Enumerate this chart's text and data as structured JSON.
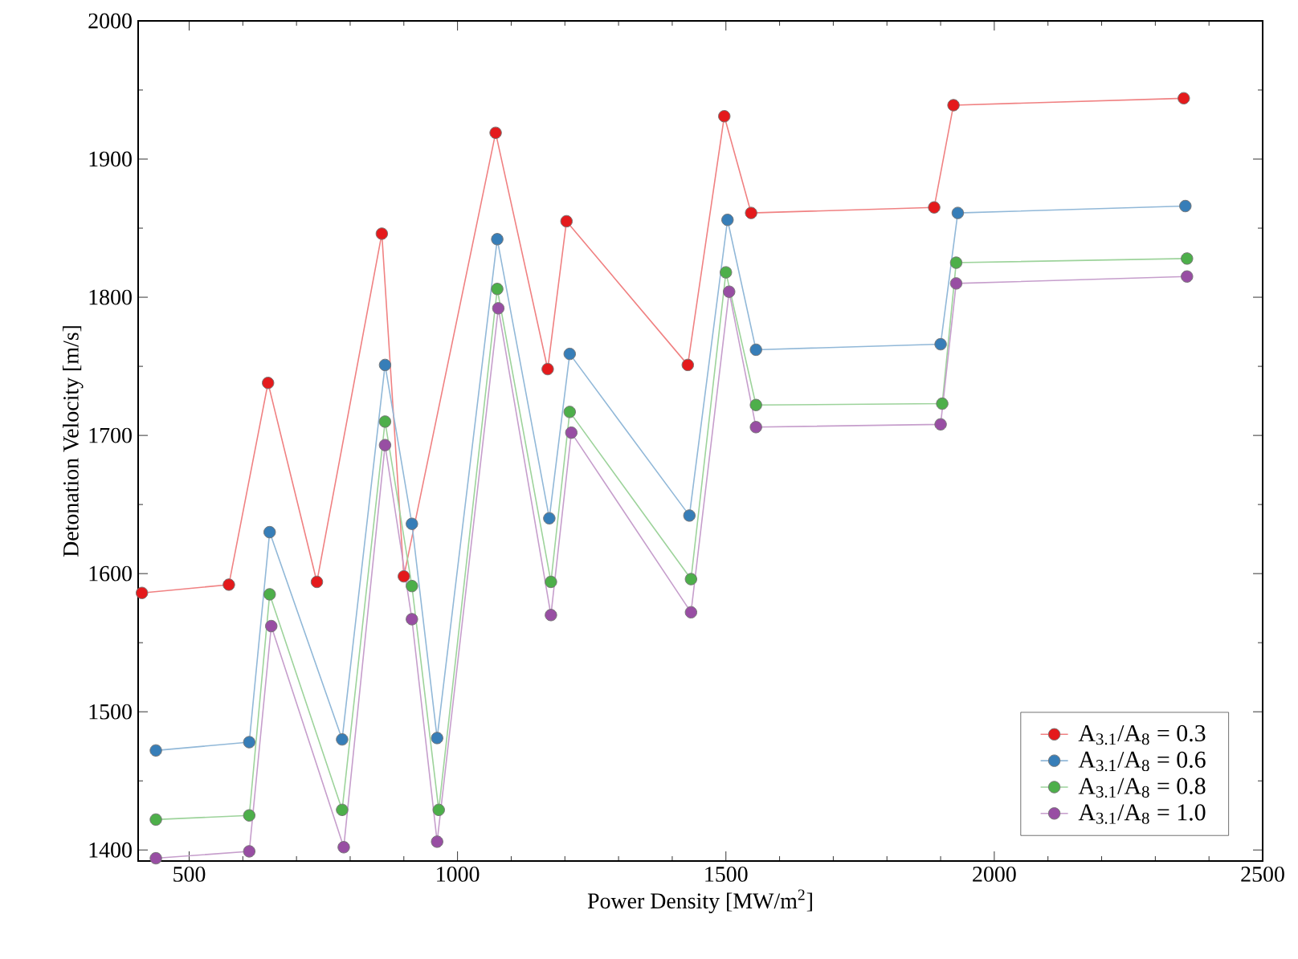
{
  "chart_data": {
    "type": "line",
    "xlabel": "Power Density [MW/m$^{2}$]",
    "ylabel": "Detonation Velocity [m/s]",
    "xlim": [
      405,
      2500
    ],
    "ylim": [
      1392,
      2000
    ],
    "xticks": [
      500,
      1000,
      1500,
      2000,
      2500
    ],
    "yticks": [
      1400,
      1500,
      1600,
      1700,
      1800,
      1900,
      2000
    ],
    "grid": false,
    "legend": "bottom right",
    "marker": "circle",
    "line_style": "solid",
    "series": [
      {
        "name": "A$_{3.1}$/A$_{8}$ = 0.3",
        "color": "#e41a1c",
        "x": [
          412,
          574,
          647,
          738,
          859,
          900,
          1071,
          1168,
          1203,
          1429,
          1497,
          1547,
          1888,
          1924,
          2353
        ],
        "values": [
          1586,
          1592,
          1738,
          1594,
          1846,
          1598,
          1919,
          1748,
          1855,
          1751,
          1931,
          1861,
          1865,
          1939,
          1944
        ]
      },
      {
        "name": "A$_{3.1}$/A$_{8}$ = 0.6",
        "color": "#377eb8",
        "x": [
          438,
          612,
          650,
          785,
          865,
          915,
          962,
          1074,
          1171,
          1209,
          1432,
          1503,
          1556,
          1900,
          1932,
          2356
        ],
        "values": [
          1472,
          1478,
          1630,
          1480,
          1751,
          1636,
          1481,
          1842,
          1640,
          1759,
          1642,
          1856,
          1762,
          1766,
          1861,
          1866
        ]
      },
      {
        "name": "A$_{3.1}$/A$_{8}$ = 0.8",
        "color": "#4daf4a",
        "x": [
          438,
          612,
          650,
          785,
          865,
          915,
          965,
          1074,
          1174,
          1209,
          1435,
          1500,
          1556,
          1903,
          1929,
          2359
        ],
        "values": [
          1422,
          1425,
          1585,
          1429,
          1710,
          1591,
          1429,
          1806,
          1594,
          1717,
          1596,
          1818,
          1722,
          1723,
          1825,
          1828
        ]
      },
      {
        "name": "A$_{3.1}$/A$_{8}$ = 1.0",
        "color": "#984ea3",
        "x": [
          438,
          612,
          653,
          788,
          865,
          915,
          962,
          1076,
          1174,
          1212,
          1435,
          1506,
          1556,
          1900,
          1929,
          2359
        ],
        "values": [
          1394,
          1399,
          1562,
          1402,
          1693,
          1567,
          1406,
          1792,
          1570,
          1702,
          1572,
          1804,
          1706,
          1708,
          1810,
          1815
        ]
      }
    ]
  }
}
